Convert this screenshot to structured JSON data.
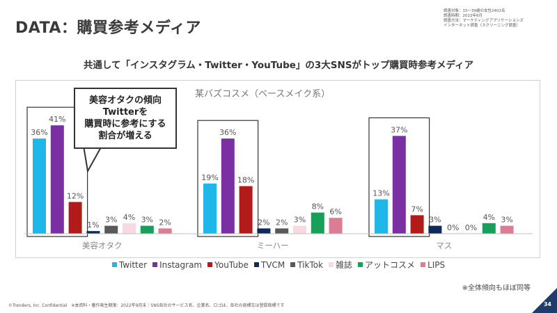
{
  "header": {
    "title": "DATA：購買参考メディア",
    "meta_lines": [
      "調査対象：15〜39歳の女性2402名",
      "調査時期：2022年6月",
      "調査方法：マーケティングアプリケーションズ",
      "インターネット調査（スクリーニング調査）"
    ]
  },
  "headline": "共通して「インスタグラム・Twitter・YouTube」の3大SNSがトップ購買時参考メディア",
  "callout": {
    "lines": [
      "美容オタクの傾向",
      "Twitterを",
      "購買時に参考にする",
      "割合が増える"
    ]
  },
  "note": "※全体傾向もほぼ同等",
  "footer": "©Trenders, Inc. Confidential　※本資料・著作発生期限：2022年9月末｜SNS各社のサービス名、企業名、ロゴは、各社の商標又は登録商標です",
  "page_number": "34",
  "colors": {
    "Twitter": "#1fb7ea",
    "Instagram": "#7a2fa3",
    "YouTube": "#b31b1b",
    "TVCM": "#0e2a5a",
    "TikTok": "#595959",
    "雑誌": "#f7d9e2",
    "アットコスメ": "#16a05a",
    "LIPS": "#dc7d95",
    "highlight_border": "#333333"
  },
  "chart_data": {
    "type": "bar",
    "title": "某バズコスメ（ベースメイク系）",
    "categories": [
      "美容オタク",
      "ミーハー",
      "マス"
    ],
    "series": [
      {
        "name": "Twitter",
        "values": [
          36,
          19,
          13
        ]
      },
      {
        "name": "Instagram",
        "values": [
          41,
          36,
          37
        ]
      },
      {
        "name": "YouTube",
        "values": [
          12,
          18,
          7
        ]
      },
      {
        "name": "TVCM",
        "values": [
          1,
          2,
          3
        ]
      },
      {
        "name": "TikTok",
        "values": [
          3,
          2,
          0
        ]
      },
      {
        "name": "雑誌",
        "values": [
          4,
          3,
          0
        ]
      },
      {
        "name": "アットコスメ",
        "values": [
          3,
          8,
          4
        ]
      },
      {
        "name": "LIPS",
        "values": [
          2,
          6,
          3
        ]
      }
    ],
    "value_suffix": "%",
    "highlighted_series": [
      "Twitter",
      "Instagram",
      "YouTube"
    ],
    "ylim": [
      0,
      45
    ],
    "grid": false,
    "legend_position": "bottom"
  }
}
